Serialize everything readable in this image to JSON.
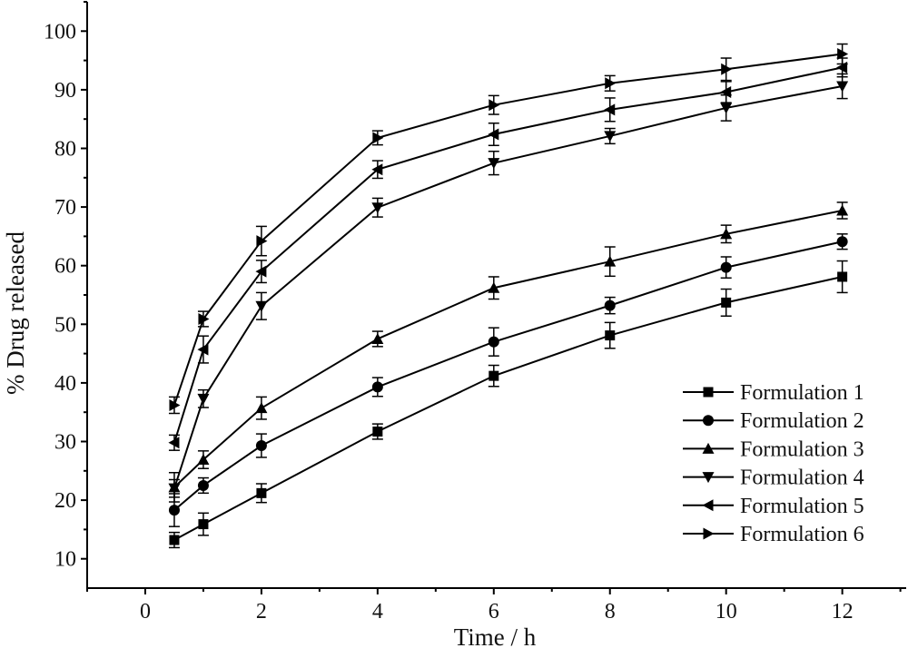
{
  "chart_data": {
    "type": "line",
    "title": "",
    "xlabel": "Time / h",
    "ylabel": "% Drug released",
    "xlim": [
      -1,
      13.1
    ],
    "ylim": [
      5,
      105
    ],
    "xticks": [
      0,
      2,
      4,
      6,
      8,
      10,
      12
    ],
    "yticks": [
      10,
      20,
      30,
      40,
      50,
      60,
      70,
      80,
      90,
      100
    ],
    "grid": false,
    "legend_position": "bottom-right",
    "x": [
      0.5,
      1,
      2,
      4,
      6,
      8,
      10,
      12
    ],
    "series": [
      {
        "name": "Formulation 1",
        "marker": "square",
        "values": [
          13.2,
          15.9,
          21.2,
          31.7,
          41.2,
          48.1,
          53.7,
          58.1
        ],
        "errors": [
          1.3,
          1.9,
          1.6,
          1.3,
          1.8,
          2.2,
          2.3,
          2.7
        ]
      },
      {
        "name": "Formulation 2",
        "marker": "circle",
        "values": [
          18.3,
          22.5,
          29.3,
          39.3,
          47.0,
          53.2,
          59.7,
          64.1
        ],
        "errors": [
          2.8,
          1.3,
          2.0,
          1.6,
          2.4,
          1.4,
          1.8,
          1.3
        ]
      },
      {
        "name": "Formulation 3",
        "marker": "triangle-up",
        "values": [
          22.2,
          26.9,
          35.7,
          47.5,
          56.2,
          60.7,
          65.4,
          69.4
        ],
        "errors": [
          2.5,
          1.5,
          1.9,
          1.3,
          1.9,
          2.5,
          1.5,
          1.4
        ]
      },
      {
        "name": "Formulation 4",
        "marker": "triangle-down",
        "values": [
          22.0,
          37.3,
          53.1,
          69.9,
          77.5,
          82.1,
          86.9,
          90.6
        ],
        "errors": [
          1.5,
          1.5,
          2.3,
          1.6,
          2.0,
          1.3,
          2.2,
          2.1
        ]
      },
      {
        "name": "Formulation 5",
        "marker": "triangle-left",
        "values": [
          29.8,
          45.7,
          59.0,
          76.4,
          82.4,
          86.6,
          89.6,
          93.8
        ],
        "errors": [
          1.3,
          2.3,
          1.9,
          1.5,
          1.9,
          2.0,
          1.8,
          1.6
        ]
      },
      {
        "name": "Formulation 6",
        "marker": "triangle-right",
        "values": [
          36.2,
          50.9,
          64.2,
          81.8,
          87.4,
          91.1,
          93.5,
          96.1
        ],
        "errors": [
          1.4,
          1.3,
          2.5,
          1.2,
          1.6,
          1.3,
          1.9,
          1.7
        ]
      }
    ]
  }
}
